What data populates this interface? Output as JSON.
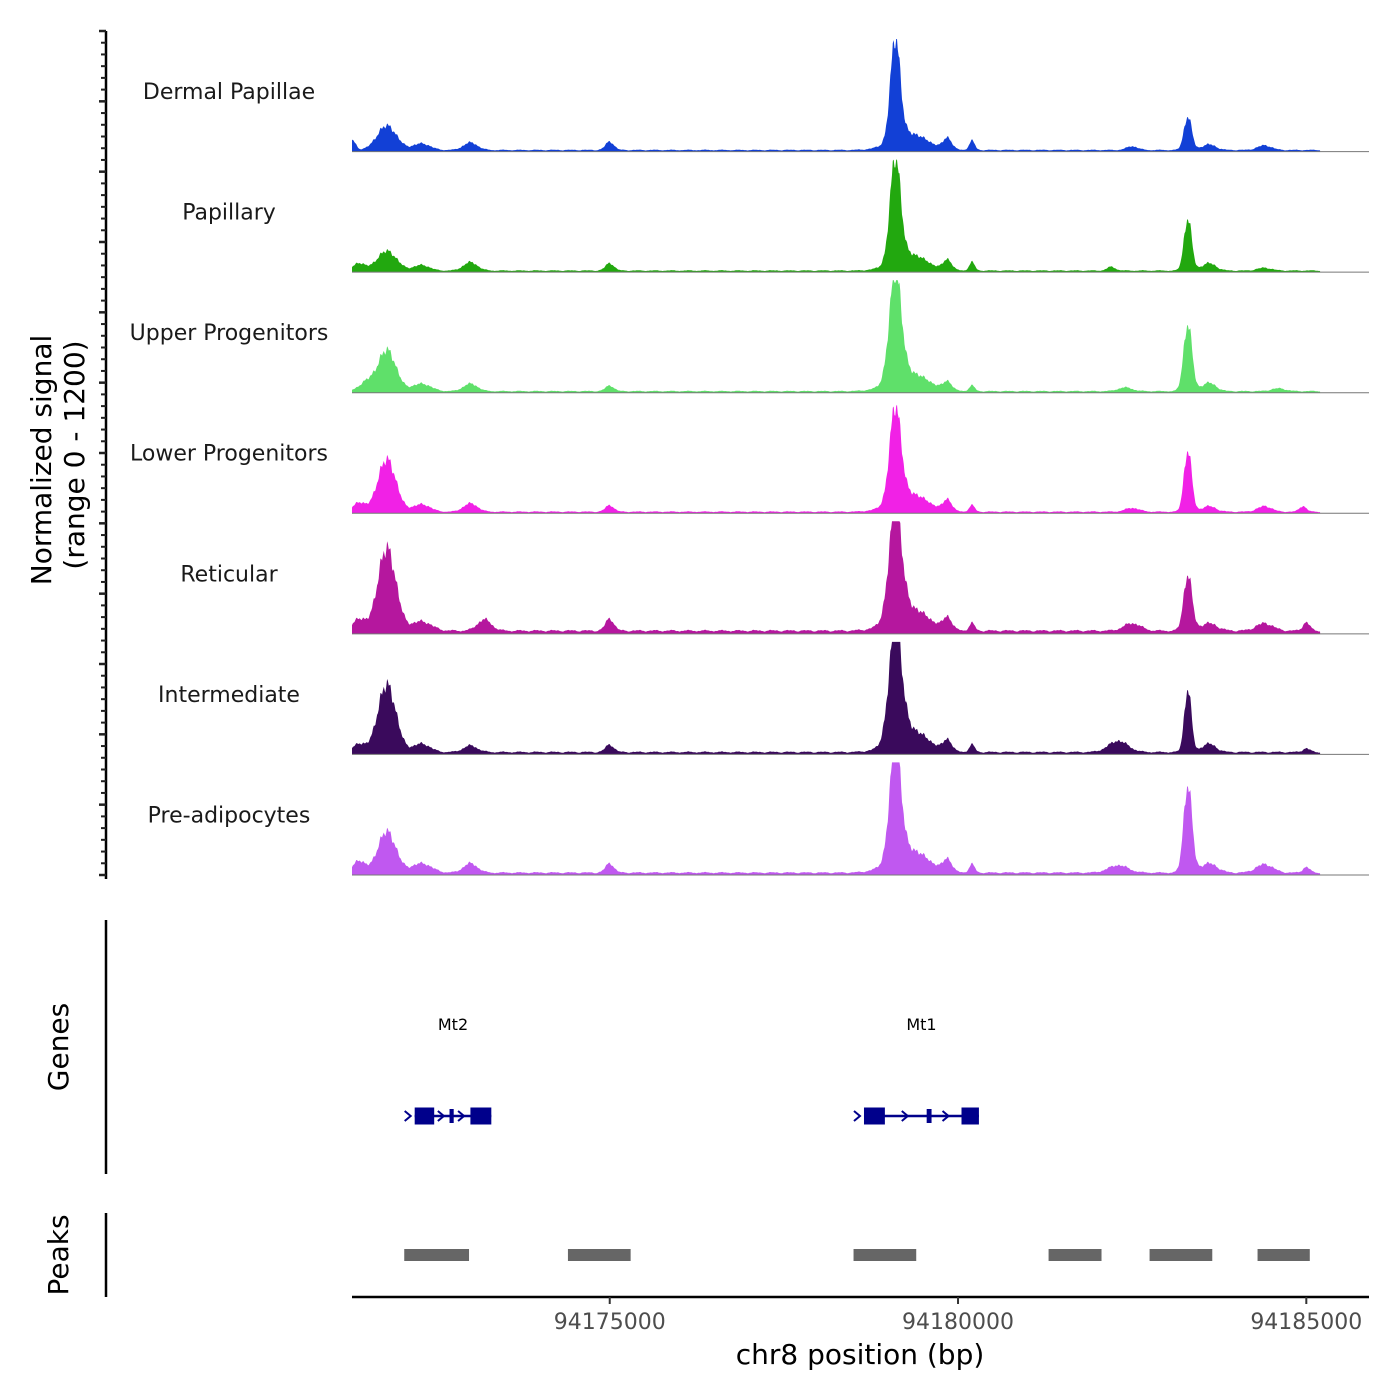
{
  "chart_data": {
    "type": "area",
    "y_axis_title_line1": "Normalized signal",
    "y_axis_title_line2": "(range 0 - 1200)",
    "y_range": [
      0,
      1200
    ],
    "xlabel": "chr8 position (bp)",
    "xlim": [
      94171300,
      94185900
    ],
    "x_ticks": [
      94175000,
      94180000,
      94185000
    ],
    "x_tick_labels": [
      "94175000",
      "94180000",
      "94185000"
    ],
    "tracks": [
      {
        "name": "Dermal Papillae",
        "color": "#1240d6",
        "peaks": [
          [
            94171300,
            110,
            50
          ],
          [
            94171800,
            260,
            140
          ],
          [
            94172300,
            70,
            120
          ],
          [
            94173000,
            80,
            100
          ],
          [
            94175000,
            90,
            60
          ],
          [
            94179100,
            1080,
            70
          ],
          [
            94179300,
            180,
            250
          ],
          [
            94179850,
            120,
            60
          ],
          [
            94180200,
            100,
            40
          ],
          [
            94182500,
            40,
            80
          ],
          [
            94183300,
            360,
            55
          ],
          [
            94183600,
            60,
            100
          ],
          [
            94184400,
            50,
            100
          ]
        ],
        "base": 20
      },
      {
        "name": "Papillary",
        "color": "#22a80f",
        "peaks": [
          [
            94171400,
            80,
            80
          ],
          [
            94171800,
            210,
            140
          ],
          [
            94172300,
            60,
            110
          ],
          [
            94173000,
            90,
            100
          ],
          [
            94175000,
            80,
            60
          ],
          [
            94179100,
            1100,
            75
          ],
          [
            94179300,
            180,
            240
          ],
          [
            94179850,
            110,
            60
          ],
          [
            94180200,
            90,
            40
          ],
          [
            94182200,
            40,
            60
          ],
          [
            94183300,
            560,
            55
          ],
          [
            94183600,
            80,
            100
          ],
          [
            94184400,
            30,
            100
          ]
        ],
        "base": 20
      },
      {
        "name": "Upper Progenitors",
        "color": "#5fe06a",
        "peaks": [
          [
            94171500,
            90,
            100
          ],
          [
            94171800,
            440,
            130
          ],
          [
            94172300,
            80,
            130
          ],
          [
            94173000,
            80,
            100
          ],
          [
            94175000,
            60,
            60
          ],
          [
            94179100,
            1140,
            85
          ],
          [
            94179300,
            200,
            260
          ],
          [
            94179850,
            90,
            60
          ],
          [
            94180200,
            60,
            40
          ],
          [
            94182400,
            40,
            100
          ],
          [
            94183300,
            720,
            60
          ],
          [
            94183600,
            90,
            100
          ],
          [
            94184600,
            30,
            100
          ]
        ],
        "base": 20
      },
      {
        "name": "Lower Progenitors",
        "color": "#f121e6",
        "peaks": [
          [
            94171400,
            100,
            80
          ],
          [
            94171800,
            560,
            130
          ],
          [
            94172300,
            80,
            120
          ],
          [
            94173000,
            90,
            100
          ],
          [
            94175000,
            70,
            60
          ],
          [
            94179100,
            1000,
            80
          ],
          [
            94179300,
            200,
            250
          ],
          [
            94179850,
            120,
            60
          ],
          [
            94180200,
            70,
            40
          ],
          [
            94182500,
            40,
            100
          ],
          [
            94183300,
            660,
            55
          ],
          [
            94183600,
            60,
            100
          ],
          [
            94184400,
            60,
            100
          ],
          [
            94184950,
            60,
            50
          ]
        ],
        "base": 20
      },
      {
        "name": "Reticular",
        "color": "#b5179e",
        "peaks": [
          [
            94171400,
            130,
            80
          ],
          [
            94171800,
            880,
            130
          ],
          [
            94172300,
            100,
            140
          ],
          [
            94173200,
            120,
            100
          ],
          [
            94175000,
            130,
            60
          ],
          [
            94179100,
            1140,
            90
          ],
          [
            94179300,
            250,
            260
          ],
          [
            94179850,
            130,
            60
          ],
          [
            94180200,
            80,
            40
          ],
          [
            94182500,
            80,
            120
          ],
          [
            94183300,
            600,
            60
          ],
          [
            94183600,
            80,
            120
          ],
          [
            94184400,
            80,
            120
          ],
          [
            94185000,
            90,
            50
          ]
        ],
        "base": 40
      },
      {
        "name": "Intermediate",
        "color": "#3a0a5c",
        "peaks": [
          [
            94171400,
            90,
            80
          ],
          [
            94171800,
            720,
            130
          ],
          [
            94172300,
            90,
            120
          ],
          [
            94173000,
            70,
            100
          ],
          [
            94175000,
            80,
            60
          ],
          [
            94179100,
            1180,
            90
          ],
          [
            94179300,
            250,
            250
          ],
          [
            94179850,
            120,
            60
          ],
          [
            94180200,
            80,
            40
          ],
          [
            94182300,
            120,
            140
          ],
          [
            94183300,
            680,
            50
          ],
          [
            94183600,
            90,
            100
          ],
          [
            94185000,
            40,
            50
          ]
        ],
        "base": 30
      },
      {
        "name": "Pre-adipocytes",
        "color": "#c058f0",
        "peaks": [
          [
            94171400,
            130,
            80
          ],
          [
            94171800,
            440,
            130
          ],
          [
            94172300,
            100,
            140
          ],
          [
            94173000,
            100,
            100
          ],
          [
            94175000,
            100,
            60
          ],
          [
            94179100,
            1200,
            80
          ],
          [
            94179300,
            250,
            260
          ],
          [
            94179850,
            130,
            60
          ],
          [
            94180200,
            90,
            40
          ],
          [
            94182300,
            80,
            140
          ],
          [
            94183300,
            940,
            60
          ],
          [
            94183600,
            100,
            120
          ],
          [
            94184400,
            90,
            120
          ],
          [
            94185000,
            60,
            50
          ]
        ],
        "base": 30
      }
    ],
    "genes_track_title": "Genes",
    "genes": [
      {
        "name": "Mt2",
        "start": 94172200,
        "end": 94173300,
        "exons": [
          [
            94172200,
            94172480
          ],
          [
            94172700,
            94172760
          ],
          [
            94173000,
            94173300
          ]
        ],
        "color": "#00008b"
      },
      {
        "name": "Mt1",
        "start": 94178650,
        "end": 94180300,
        "exons": [
          [
            94178650,
            94178950
          ],
          [
            94179550,
            94179620
          ],
          [
            94180050,
            94180300
          ]
        ],
        "color": "#00008b"
      }
    ],
    "peaks_track_title": "Peaks",
    "peaks_color": "#666666",
    "peak_regions": [
      [
        94172050,
        94172980
      ],
      [
        94174400,
        94175300
      ],
      [
        94178500,
        94179400
      ],
      [
        94181300,
        94182060
      ],
      [
        94182750,
        94183650
      ],
      [
        94184300,
        94185050
      ]
    ]
  }
}
